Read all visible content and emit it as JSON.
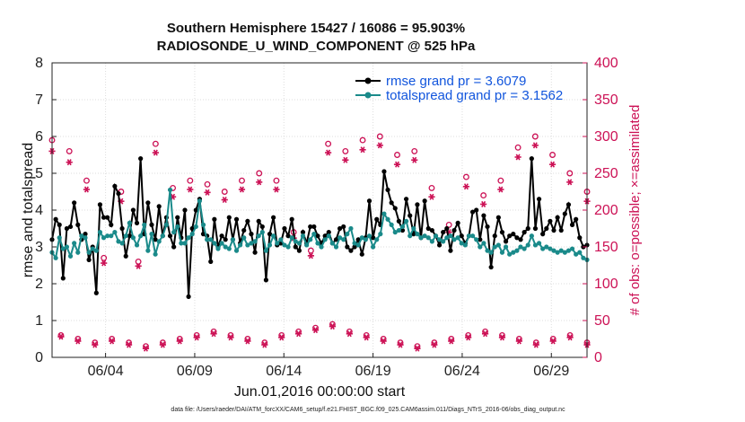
{
  "chart_data": {
    "type": "line",
    "title": "Southern Hemisphere 15427 / 16086 = 95.903%",
    "subtitle": "RADIOSONDE_U_WIND_COMPONENT @ 525 hPa",
    "xlabel": "Jun.01,2016 00:00:00 start",
    "ylabel": "rmse and totalspread",
    "ylabel_right": "# of obs: o=possible; ×=assimilated",
    "footer": "data file: /Users/raeder/DAI/ATM_forcXX/CAM6_setup/f.e21.FHIST_BGC.f09_025.CAM6assim.011/Diags_NTrS_2016-06/obs_diag_output.nc",
    "xlim": [
      1,
      31
    ],
    "ylim": [
      0,
      8
    ],
    "ylim_right": [
      0,
      400
    ],
    "xticks": [
      4,
      9,
      14,
      19,
      24,
      29
    ],
    "xtick_labels": [
      "06/04",
      "06/09",
      "06/14",
      "06/19",
      "06/24",
      "06/29"
    ],
    "yticks": [
      0,
      1,
      2,
      3,
      4,
      5,
      6,
      7,
      8
    ],
    "yticks_right": [
      0,
      50,
      100,
      150,
      200,
      250,
      300,
      350,
      400
    ],
    "colors": {
      "rmse": "#000000",
      "spread": "#1a8a8a",
      "obs": "#cc1155",
      "legend_text": "#1155dd"
    },
    "series": [
      {
        "name": "rmse grand pr = 3.6079",
        "axis": "left",
        "values": [
          3.2,
          3.75,
          3.6,
          2.15,
          3.5,
          3.55,
          4.2,
          3.6,
          3.2,
          3.35,
          2.65,
          3.0,
          1.75,
          4.15,
          3.8,
          3.8,
          3.6,
          4.65,
          4.45,
          3.5,
          2.75,
          3.3,
          4.0,
          3.65,
          5.4,
          3.35,
          4.2,
          3.6,
          3.2,
          4.1,
          3.3,
          3.8,
          3.3,
          3.0,
          3.8,
          3.25,
          4.0,
          1.65,
          3.5,
          4.0,
          4.3,
          3.35,
          3.3,
          2.6,
          3.75,
          3.0,
          3.3,
          3.2,
          3.8,
          3.2,
          3.75,
          3.1,
          3.45,
          3.7,
          3.35,
          2.85,
          3.7,
          3.55,
          2.1,
          3.35,
          3.8,
          3.05,
          3.1,
          3.5,
          3.3,
          3.75,
          3.0,
          2.9,
          3.4,
          3.1,
          3.55,
          3.55,
          3.3,
          3.1,
          3.3,
          3.4,
          3.1,
          3.2,
          3.5,
          3.55,
          3.0,
          2.9,
          3.0,
          3.2,
          2.8,
          3.25,
          4.25,
          3.25,
          3.75,
          3.6,
          5.05,
          4.55,
          4.2,
          4.05,
          3.7,
          3.45,
          4.3,
          3.85,
          3.35,
          4.15,
          3.25,
          4.25,
          3.5,
          3.45,
          3.3,
          3.05,
          3.4,
          3.5,
          2.9,
          3.45,
          3.65,
          3.3,
          3.1,
          3.3,
          3.95,
          4.0,
          3.2,
          3.85,
          3.55,
          2.45,
          3.3,
          3.8,
          3.4,
          3.15,
          3.3,
          3.35,
          3.25,
          3.2,
          3.4,
          3.5,
          5.4,
          3.5,
          4.3,
          3.35,
          3.5,
          3.7,
          3.45,
          3.8,
          3.45,
          3.9,
          4.15,
          3.6,
          3.75,
          3.25,
          3.0,
          3.05
        ]
      },
      {
        "name": "totalspread grand pr = 3.1562",
        "axis": "left",
        "values": [
          2.85,
          2.7,
          3.25,
          2.95,
          3.0,
          2.75,
          3.1,
          2.85,
          3.3,
          3.25,
          2.85,
          2.95,
          2.9,
          3.4,
          3.25,
          3.3,
          3.3,
          3.4,
          3.15,
          3.1,
          3.3,
          3.65,
          3.25,
          3.05,
          3.3,
          3.6,
          2.9,
          3.35,
          2.8,
          3.15,
          3.3,
          3.6,
          4.55,
          3.4,
          3.55,
          3.1,
          3.1,
          3.25,
          3.35,
          3.55,
          4.25,
          3.6,
          3.2,
          3.2,
          3.1,
          2.95,
          3.1,
          3.0,
          2.95,
          3.2,
          2.9,
          3.05,
          3.25,
          3.05,
          3.1,
          3.15,
          3.3,
          3.4,
          2.9,
          3.05,
          3.3,
          3.1,
          3.2,
          3.05,
          3.0,
          3.25,
          3.15,
          3.1,
          3.3,
          3.05,
          3.2,
          3.35,
          3.1,
          3.0,
          3.2,
          3.3,
          3.1,
          3.0,
          3.25,
          3.2,
          3.35,
          3.5,
          3.1,
          3.05,
          3.25,
          3.2,
          3.3,
          3.0,
          3.2,
          3.35,
          3.9,
          3.75,
          3.6,
          3.4,
          3.45,
          3.55,
          3.7,
          3.3,
          3.5,
          3.35,
          3.25,
          3.3,
          3.25,
          3.15,
          3.3,
          3.2,
          3.15,
          3.25,
          3.3,
          3.2,
          3.25,
          3.1,
          3.05,
          3.3,
          3.3,
          3.2,
          3.0,
          3.1,
          2.9,
          2.85,
          3.0,
          3.05,
          2.85,
          3.0,
          2.8,
          2.85,
          2.9,
          3.0,
          2.95,
          3.05,
          3.3,
          3.05,
          3.1,
          2.95,
          3.0,
          2.95,
          2.9,
          2.85,
          2.9,
          2.85,
          2.9,
          2.95,
          2.8,
          2.85,
          2.7,
          2.65
        ]
      },
      {
        "name": "possible obs (00Z)",
        "axis": "right",
        "values": [
          295,
          280,
          240,
          135,
          225,
          130,
          290,
          230,
          240,
          235,
          225,
          240,
          250,
          240,
          170,
          145,
          290,
          280,
          295,
          300,
          275,
          280,
          230,
          180,
          245,
          220,
          240,
          285,
          300,
          275,
          250,
          225
        ]
      },
      {
        "name": "assimilated obs (00Z)",
        "axis": "right",
        "values": [
          280,
          265,
          228,
          128,
          212,
          124,
          278,
          218,
          228,
          224,
          214,
          228,
          238,
          228,
          162,
          138,
          278,
          268,
          282,
          288,
          262,
          268,
          218,
          170,
          232,
          208,
          228,
          272,
          288,
          262,
          238,
          212
        ]
      },
      {
        "name": "possible obs (12Z)",
        "axis": "right",
        "values": [
          30,
          25,
          20,
          25,
          20,
          15,
          20,
          25,
          30,
          35,
          30,
          25,
          20,
          30,
          35,
          40,
          45,
          35,
          30,
          25,
          20,
          15,
          20,
          25,
          30,
          35,
          30,
          25,
          20,
          25,
          30,
          20
        ]
      },
      {
        "name": "assimilated obs (12Z)",
        "axis": "right",
        "values": [
          28,
          22,
          17,
          22,
          17,
          12,
          17,
          22,
          27,
          32,
          27,
          22,
          17,
          27,
          32,
          37,
          42,
          32,
          27,
          22,
          17,
          12,
          17,
          22,
          27,
          32,
          27,
          22,
          17,
          22,
          27,
          17
        ]
      }
    ]
  }
}
